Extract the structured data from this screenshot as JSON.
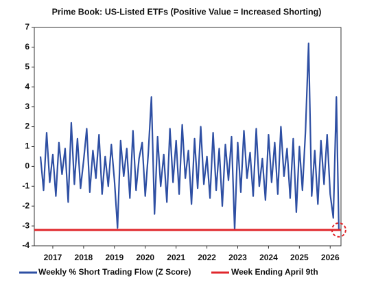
{
  "chart_data": {
    "type": "line",
    "title": "Prime Book: US-Listed ETFs (Positive Value = Increased Shorting)",
    "x": [
      2016.6,
      2016.7,
      2016.8,
      2016.9,
      2017.0,
      2017.1,
      2017.2,
      2017.3,
      2017.4,
      2017.5,
      2017.6,
      2017.7,
      2017.8,
      2017.9,
      2018.0,
      2018.1,
      2018.2,
      2018.3,
      2018.4,
      2018.5,
      2018.6,
      2018.7,
      2018.8,
      2018.9,
      2019.0,
      2019.1,
      2019.2,
      2019.3,
      2019.4,
      2019.5,
      2019.6,
      2019.7,
      2019.8,
      2019.9,
      2020.0,
      2020.1,
      2020.2,
      2020.3,
      2020.4,
      2020.5,
      2020.6,
      2020.7,
      2020.8,
      2020.9,
      2021.0,
      2021.1,
      2021.2,
      2021.3,
      2021.4,
      2021.5,
      2021.6,
      2021.7,
      2021.8,
      2021.9,
      2022.0,
      2022.1,
      2022.2,
      2022.3,
      2022.4,
      2022.5,
      2022.6,
      2022.7,
      2022.8,
      2022.9,
      2023.0,
      2023.1,
      2023.2,
      2023.3,
      2023.4,
      2023.5,
      2023.6,
      2023.7,
      2023.8,
      2023.9,
      2024.0,
      2024.1,
      2024.2,
      2024.3,
      2024.4,
      2024.5,
      2024.6,
      2024.7,
      2024.8,
      2024.9,
      2025.0,
      2025.1,
      2025.2,
      2025.3,
      2025.4,
      2025.5,
      2025.6,
      2025.7,
      2025.8,
      2025.9,
      2026.0,
      2026.1,
      2026.2,
      2026.28
    ],
    "series": [
      {
        "name": "Weekly % Short Trading Flow (Z Score)",
        "color": "#2e4fa3",
        "values": [
          0.5,
          -1.2,
          1.7,
          -0.8,
          0.6,
          -1.5,
          1.2,
          -0.4,
          0.9,
          -1.8,
          2.2,
          -0.9,
          1.4,
          -1.1,
          0.3,
          1.9,
          -1.3,
          0.8,
          -0.6,
          1.6,
          -1.4,
          0.5,
          -1.0,
          1.1,
          -0.7,
          -3.1,
          1.3,
          -0.5,
          0.9,
          -1.6,
          1.8,
          -1.2,
          0.4,
          1.2,
          -1.5,
          0.7,
          3.5,
          -2.4,
          1.5,
          -1.0,
          0.6,
          -1.8,
          1.9,
          -0.8,
          1.3,
          -1.4,
          2.1,
          -0.6,
          0.8,
          -1.9,
          1.4,
          -1.1,
          2.0,
          -0.9,
          0.5,
          -1.6,
          1.7,
          -1.2,
          0.9,
          -2.0,
          1.1,
          -0.7,
          1.5,
          -3.2,
          1.2,
          -1.3,
          1.8,
          -0.6,
          0.7,
          -1.5,
          1.9,
          -1.0,
          0.4,
          -1.7,
          1.6,
          -0.8,
          1.2,
          -1.4,
          2.0,
          -0.5,
          0.9,
          -1.6,
          1.4,
          -2.3,
          1.0,
          -1.2,
          1.8,
          6.2,
          -1.5,
          0.8,
          -1.9,
          1.3,
          -0.9,
          1.6,
          -1.4,
          -2.6,
          3.5,
          -3.2
        ]
      }
    ],
    "reference_line": {
      "name": "Week Ending April 9th",
      "color": "#e0262b",
      "value": -3.2
    },
    "xlim": [
      2016.4,
      2026.35
    ],
    "xticks": [
      2017,
      2018,
      2019,
      2020,
      2021,
      2022,
      2023,
      2024,
      2025,
      2026
    ],
    "ylim": [
      -4,
      7
    ],
    "yticks": [
      -4,
      -3,
      -2,
      -1,
      0,
      1,
      2,
      3,
      4,
      5,
      6,
      7
    ]
  }
}
